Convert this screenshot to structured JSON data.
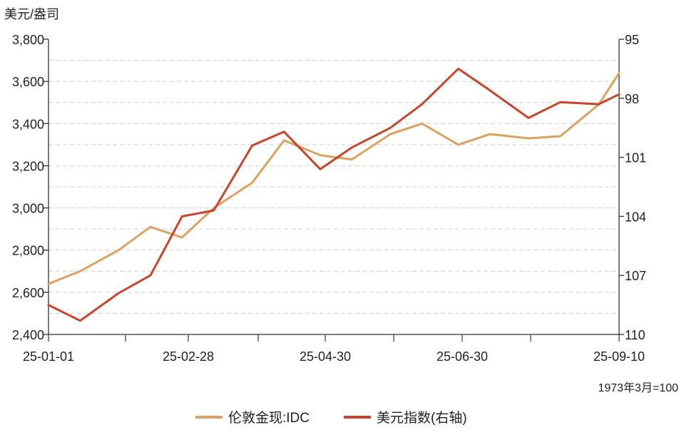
{
  "chart_data": {
    "type": "line",
    "ylabel": "美元/盎司",
    "note": "1973年3月=100",
    "x_ticks": [
      "25-01-01",
      "25-02-28",
      "25-04-30",
      "25-06-30",
      "25-09-10"
    ],
    "x": [
      "2025-01-01",
      "2025-01-15",
      "2025-02-01",
      "2025-02-15",
      "2025-03-01",
      "2025-03-15",
      "2025-04-01",
      "2025-04-15",
      "2025-05-01",
      "2025-05-15",
      "2025-06-01",
      "2025-06-15",
      "2025-07-01",
      "2025-07-15",
      "2025-08-01",
      "2025-08-15",
      "2025-09-01",
      "2025-09-10"
    ],
    "left_axis": {
      "ylim": [
        2400,
        3800
      ],
      "ticks": [
        "2,400",
        "2,600",
        "2,800",
        "3,000",
        "3,200",
        "3,400",
        "3,600",
        "3,800"
      ]
    },
    "right_axis": {
      "ylim": [
        110,
        95
      ],
      "ticks": [
        "95",
        "98",
        "101",
        "104",
        "107",
        "110"
      ],
      "inverted": true
    },
    "grid": true,
    "legend_position": "bottom-center",
    "series": [
      {
        "name": "伦敦金现:IDC",
        "axis": "left",
        "color": "#DDA15E",
        "values": [
          2640,
          2700,
          2800,
          2910,
          2860,
          3000,
          3120,
          3320,
          3250,
          3230,
          3350,
          3400,
          3300,
          3350,
          3330,
          3340,
          3490,
          3640
        ]
      },
      {
        "name": "美元指数(右轴)",
        "axis": "right",
        "color": "#C8442A",
        "values": [
          108.5,
          109.3,
          107.9,
          107.0,
          104.0,
          103.7,
          100.4,
          99.7,
          101.6,
          100.5,
          99.5,
          98.3,
          96.5,
          97.6,
          99.0,
          98.2,
          98.3,
          97.8
        ]
      }
    ]
  }
}
